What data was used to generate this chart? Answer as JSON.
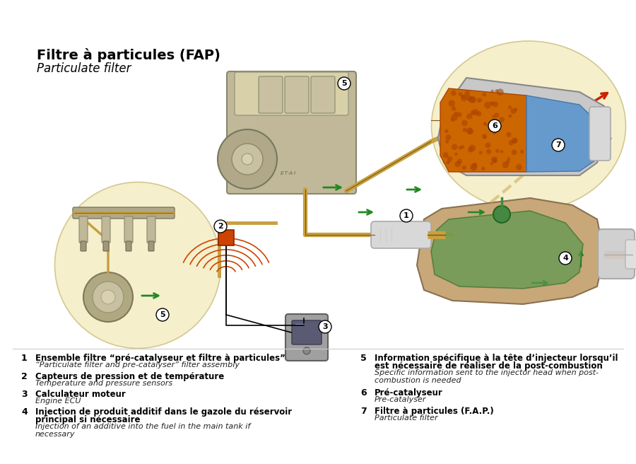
{
  "title_line1": "Filtre à particules (FAP)",
  "title_line2": "Particulate filter",
  "background_color": "#ffffff",
  "legend_items": [
    {
      "num": "1",
      "fr": "Ensemble filtre “pré-catalyseur et filtre à particules”",
      "fr2": null,
      "en": "“Particulate filter and pre-catalyser” filter assembly"
    },
    {
      "num": "2",
      "fr": "Capteurs de pression et de température",
      "fr2": null,
      "en": "Temperature and pressure sensors"
    },
    {
      "num": "3",
      "fr": "Calculateur moteur",
      "fr2": null,
      "en": "Engine ECU"
    },
    {
      "num": "4",
      "fr": "Injection de produit additif dans le gazole du réservoir",
      "fr2": "principal si nécessaire",
      "en": "Injection of an additive into the fuel in the main tank if",
      "en2": "necessary"
    },
    {
      "num": "5",
      "fr": "Information spécifique à la tête d’injecteur lorsqu’il",
      "fr2": "est nécessaire de réaliser de la post-combustion",
      "en": "Specific information sent to the injector head when post-",
      "en2": "combustion is needed"
    },
    {
      "num": "6",
      "fr": "Pré-catalyseur",
      "fr2": null,
      "en": "Pre-catalyser"
    },
    {
      "num": "7",
      "fr": "Filtre à particules (F.A.P.)",
      "fr2": null,
      "en": "Particulate filter"
    }
  ],
  "circle_fill": "#f5efcc",
  "circle_edge": "#d4c890",
  "pipe_color": "#c8a040",
  "pipe_dark": "#7a5810",
  "sensor_color": "#cc4400",
  "green_color": "#228822",
  "title_fontsize": 14,
  "subtitle_fontsize": 12,
  "legend_fr_fontsize": 8.5,
  "legend_en_fontsize": 8.0,
  "num_fontsize": 9
}
